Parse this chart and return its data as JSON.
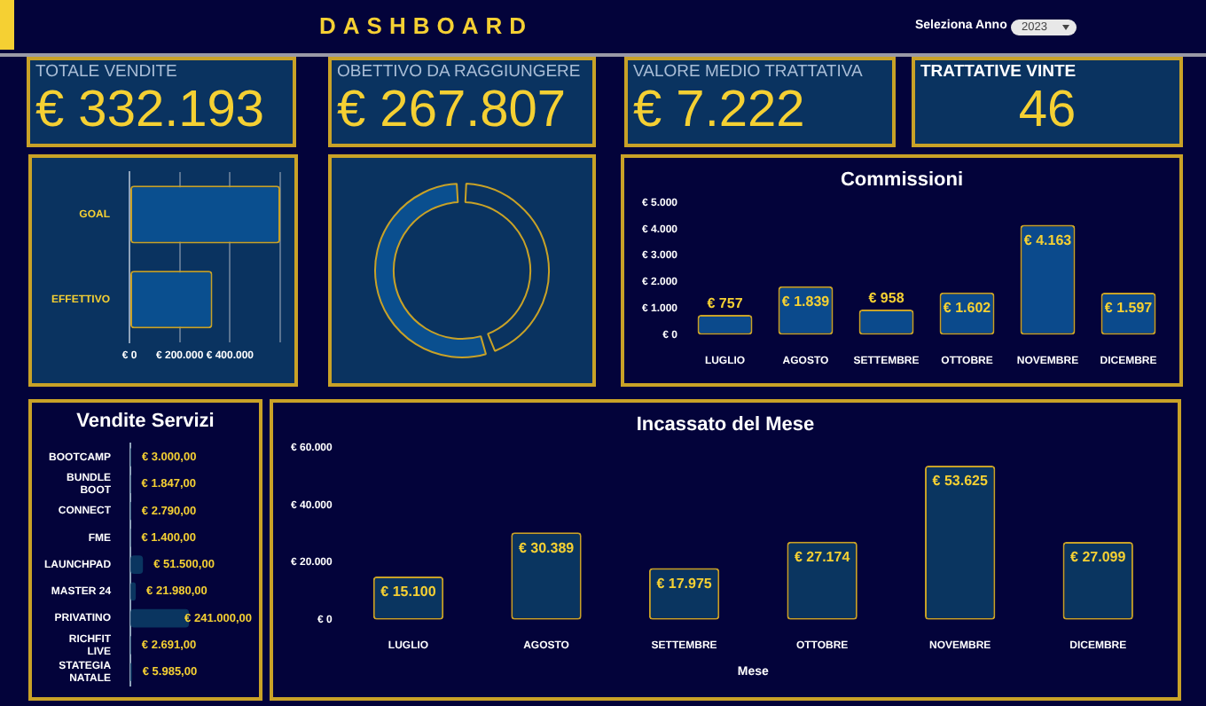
{
  "chart_data": [
    {
      "type": "other",
      "title": "DASHBOARD",
      "annotations": [
        "Seleziona Anno",
        "2023"
      ]
    },
    {
      "type": "other",
      "title": "TOTALE VENDITE",
      "annotations": [
        "€ 332.193"
      ]
    },
    {
      "type": "other",
      "title": "OBETTIVO DA RAGGIUNGERE",
      "annotations": [
        "€ 267.807"
      ]
    },
    {
      "type": "other",
      "title": "VALORE MEDIO TRATTATIVA",
      "annotations": [
        "€ 7.222"
      ]
    },
    {
      "type": "other",
      "title": "TRATTATIVE VINTE",
      "annotations": [
        "46"
      ]
    },
    {
      "type": "bar",
      "orientation": "horizontal",
      "categories": [
        "GOAL",
        "EFFETTIVO"
      ],
      "values": [
        600000,
        330000
      ],
      "color": "#0a4f8f",
      "xlim": [
        0,
        600000
      ],
      "xticks": [
        {
          "value": 0,
          "label": "€ 0"
        },
        {
          "value": 200000,
          "label": "€ 200.000"
        },
        {
          "value": 400000,
          "label": "€ 400.000"
        },
        {
          "value": 600000,
          "label": null
        }
      ],
      "grid": "x"
    },
    {
      "type": "donut",
      "categories": [
        null,
        null
      ],
      "values": [
        44.6,
        55.4
      ],
      "colors": [
        "#0a3360",
        "#0a4f8f"
      ]
    },
    {
      "type": "bar",
      "title": "Commissioni",
      "categories": [
        "LUGLIO",
        "AGOSTO",
        "SETTEMBRE",
        "OTTOBRE",
        "NOVEMBRE",
        "DICEMBRE"
      ],
      "values": [
        757,
        1839,
        958,
        1602,
        4163,
        1597
      ],
      "value_labels": [
        "€ 757",
        "€ 1.839",
        "€ 958",
        "€ 1.602",
        "€ 4.163",
        "€ 1.597"
      ],
      "color": "#0b4a8c",
      "ylim": [
        0,
        5000
      ],
      "yticks": [
        {
          "value": 0,
          "label": "€ 0"
        },
        {
          "value": 1000,
          "label": "€ 1.000"
        },
        {
          "value": 2000,
          "label": "€ 2.000"
        },
        {
          "value": 3000,
          "label": "€ 3.000"
        },
        {
          "value": 4000,
          "label": "€ 4.000"
        },
        {
          "value": 5000,
          "label": "€ 5.000"
        }
      ]
    },
    {
      "type": "bar",
      "orientation": "horizontal",
      "title": "Vendite Servizi",
      "categories": [
        "BOOTCAMP",
        "BUNDLE BOOT",
        "CONNECT",
        "FME",
        "LAUNCHPAD",
        "MASTER 24",
        "PRIVATINO",
        "RICHFIT LIVE",
        "STATEGIA NATALE"
      ],
      "values": [
        3000,
        1847,
        2790,
        1400,
        51500,
        21980,
        241000,
        2691,
        5985
      ],
      "value_labels": [
        "€ 3.000,00",
        "€ 1.847,00",
        "€ 2.790,00",
        "€ 1.400,00",
        "€ 51.500,00",
        "€ 21.980,00",
        "€ 241.000,00",
        "€ 2.691,00",
        "€ 5.985,00"
      ],
      "color": "#0a3560"
    },
    {
      "type": "bar",
      "title": "Incassato del Mese",
      "xlabel": "Mese",
      "categories": [
        "LUGLIO",
        "AGOSTO",
        "SETTEMBRE",
        "OTTOBRE",
        "NOVEMBRE",
        "DICEMBRE"
      ],
      "values": [
        15100,
        30389,
        17975,
        27174,
        53625,
        27099
      ],
      "value_labels": [
        "€ 15.100",
        "€ 30.389",
        "€ 17.975",
        "€ 27.174",
        "€ 53.625",
        "€ 27.099"
      ],
      "color": "#0a3560",
      "ylim": [
        0,
        60000
      ],
      "yticks": [
        {
          "value": 0,
          "label": "€ 0"
        },
        {
          "value": 20000,
          "label": "€ 20.000"
        },
        {
          "value": 40000,
          "label": "€ 40.000"
        },
        {
          "value": 60000,
          "label": "€ 60.000"
        }
      ]
    }
  ]
}
